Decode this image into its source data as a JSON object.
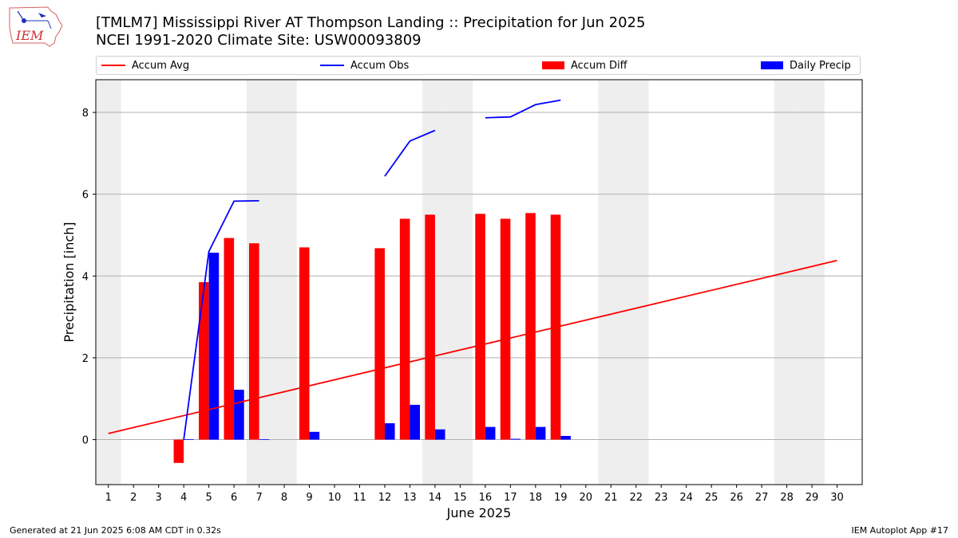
{
  "header": {
    "title_line1": "[TMLM7] Mississippi River  AT Thompson Landing :: Precipitation for Jun 2025",
    "title_line2": "NCEI 1991-2020 Climate Site: USW00093809",
    "logo_text": "IEM"
  },
  "footer": {
    "generated": "Generated at 21 Jun 2025 6:08 AM CDT in 0.32s",
    "app": "IEM Autoplot App #17"
  },
  "legend": {
    "accum_avg": "Accum Avg",
    "accum_obs": "Accum Obs",
    "accum_diff": "Accum Diff",
    "daily_precip": "Daily Precip"
  },
  "colors": {
    "accum_avg": "#ff0000",
    "accum_obs": "#0000ff",
    "accum_diff": "#ff0000",
    "daily_precip": "#0000ff",
    "weekend_shade": "#eeeeee",
    "grid": "#b0b0b0"
  },
  "chart_data": {
    "type": "bar",
    "xlabel": "June 2025",
    "ylabel": "Precipitation [inch]",
    "xlim": [
      0.5,
      31
    ],
    "ylim": [
      -1.1,
      8.8
    ],
    "yticks": [
      0,
      2,
      4,
      6,
      8
    ],
    "xticks": [
      1,
      2,
      3,
      4,
      5,
      6,
      7,
      8,
      9,
      10,
      11,
      12,
      13,
      14,
      15,
      16,
      17,
      18,
      19,
      20,
      21,
      22,
      23,
      24,
      25,
      26,
      27,
      28,
      29,
      30
    ],
    "grid": "horizontal",
    "weekend_days": [
      1,
      7,
      8,
      14,
      15,
      21,
      22,
      28,
      29
    ],
    "series": [
      {
        "name": "Accum Avg",
        "kind": "line",
        "x": [
          1,
          30
        ],
        "y": [
          0.15,
          4.38
        ]
      },
      {
        "name": "Accum Obs",
        "kind": "line",
        "segments": [
          {
            "x": [
              4,
              5,
              6,
              7
            ],
            "y": [
              0.0,
              4.6,
              5.83,
              5.84
            ]
          },
          {
            "x": [
              12,
              13,
              14
            ],
            "y": [
              6.44,
              7.3,
              7.56
            ]
          },
          {
            "x": [
              16,
              17,
              18,
              19
            ],
            "y": [
              7.87,
              7.89,
              8.19,
              8.3
            ]
          }
        ]
      },
      {
        "name": "Accum Diff",
        "kind": "bar",
        "x": [
          4,
          5,
          6,
          7,
          9,
          12,
          13,
          14,
          16,
          17,
          18,
          19
        ],
        "y": [
          -0.57,
          3.85,
          4.93,
          4.8,
          4.7,
          4.68,
          5.4,
          5.5,
          5.52,
          5.4,
          5.54,
          5.5
        ]
      },
      {
        "name": "Daily Precip",
        "kind": "bar",
        "x": [
          4,
          5,
          6,
          7,
          9,
          12,
          13,
          14,
          16,
          17,
          18,
          19
        ],
        "y": [
          0.01,
          4.57,
          1.22,
          0.01,
          0.19,
          0.4,
          0.85,
          0.25,
          0.31,
          0.02,
          0.31,
          0.09
        ]
      }
    ]
  }
}
